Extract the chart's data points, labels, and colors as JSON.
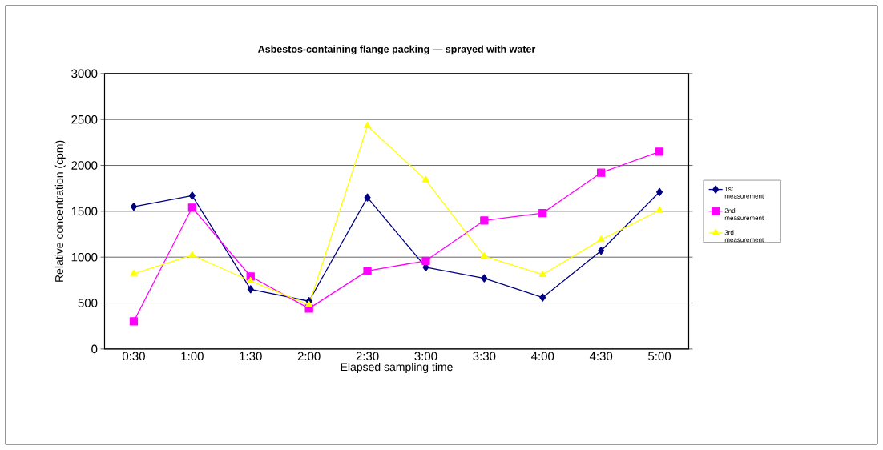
{
  "chart_data": {
    "type": "line",
    "title": "Asbestos-containing flange packing — sprayed with water",
    "xlabel": "Elapsed sampling time",
    "ylabel": "Relative concentration (cpm)",
    "categories": [
      "0:30",
      "1:00",
      "1:30",
      "2:00",
      "2:30",
      "3:00",
      "3:30",
      "4:00",
      "4:30",
      "5:00"
    ],
    "series": [
      {
        "name": "1st measurement",
        "color": "#000080",
        "marker": "diamond",
        "values": [
          1550,
          1670,
          650,
          520,
          1650,
          890,
          770,
          560,
          1070,
          1710
        ]
      },
      {
        "name": "2nd measurement",
        "color": "#ff00ff",
        "marker": "square",
        "values": [
          300,
          1540,
          790,
          440,
          850,
          960,
          1400,
          1480,
          1920,
          2150
        ]
      },
      {
        "name": "3rd measurement",
        "color": "#ffff00",
        "marker": "triangle",
        "values": [
          820,
          1020,
          740,
          480,
          2430,
          1840,
          1010,
          810,
          1190,
          1510
        ]
      }
    ],
    "ylim": [
      0,
      3000
    ],
    "yticks": [
      0,
      500,
      1000,
      1500,
      2000,
      2500,
      3000
    ],
    "grid": "y",
    "legend": "right",
    "line_style": "solid"
  }
}
